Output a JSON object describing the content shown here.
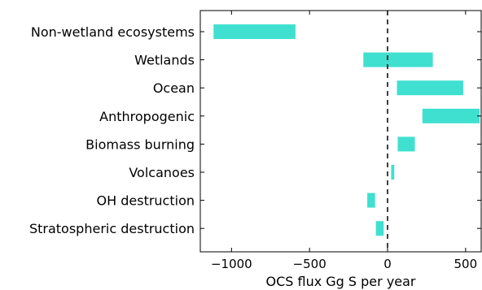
{
  "chart_data": {
    "type": "bar",
    "orientation": "horizontal",
    "xlabel": "OCS flux Gg S per year",
    "ylabel": "",
    "title": "",
    "xlim": [
      -1200,
      600
    ],
    "xticks": [
      -1000,
      -500,
      0,
      500
    ],
    "xtick_labels": [
      "−1000",
      "−500",
      "0",
      "500"
    ],
    "reference_line": {
      "x": 0,
      "style": "dashed"
    },
    "bar_color": "#40e0d0",
    "grid": false,
    "legend": "none",
    "categories": [
      "Non-wetland ecosystems",
      "Wetlands",
      "Ocean",
      "Anthropogenic",
      "Biomass burning",
      "Volcanoes",
      "OH destruction",
      "Stratospheric destruction"
    ],
    "ranges": [
      [
        -1115,
        -590
      ],
      [
        -155,
        290
      ],
      [
        60,
        485
      ],
      [
        223,
        590
      ],
      [
        65,
        175
      ],
      [
        23,
        43
      ],
      [
        -130,
        -80
      ],
      [
        -75,
        -25
      ]
    ]
  }
}
